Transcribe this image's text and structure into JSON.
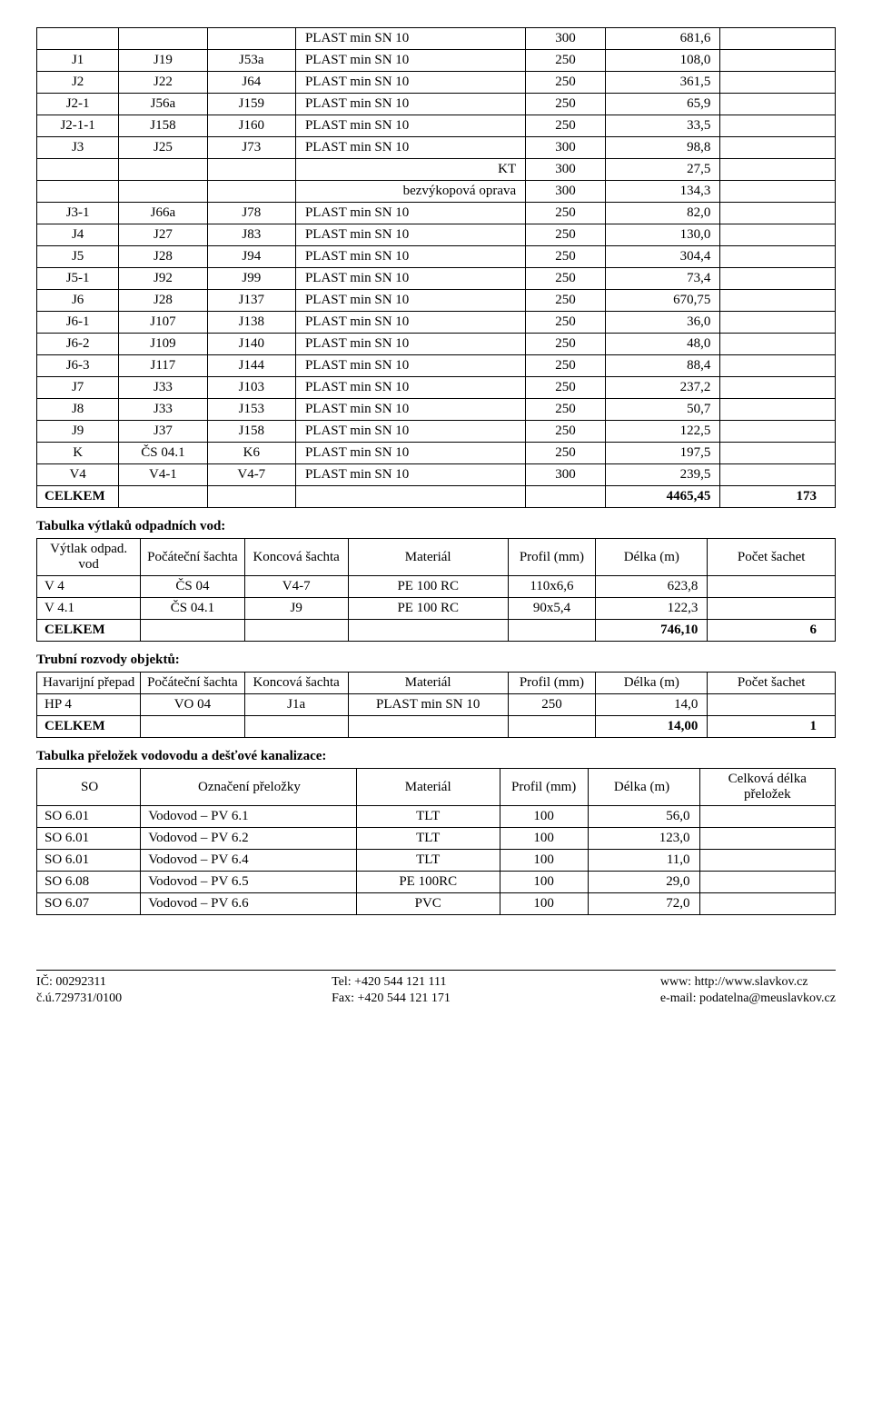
{
  "table1": {
    "rows": [
      {
        "a": "",
        "b": "",
        "c": "",
        "d": "PLAST min SN 10",
        "e": "300",
        "f": "681,6",
        "g": ""
      },
      {
        "a": "J1",
        "b": "J19",
        "c": "J53a",
        "d": "PLAST min SN 10",
        "e": "250",
        "f": "108,0",
        "g": ""
      },
      {
        "a": "J2",
        "b": "J22",
        "c": "J64",
        "d": "PLAST min SN 10",
        "e": "250",
        "f": "361,5",
        "g": ""
      },
      {
        "a": "J2-1",
        "b": "J56a",
        "c": "J159",
        "d": "PLAST min SN 10",
        "e": "250",
        "f": "65,9",
        "g": ""
      },
      {
        "a": "J2-1-1",
        "b": "J158",
        "c": "J160",
        "d": "PLAST min SN 10",
        "e": "250",
        "f": "33,5",
        "g": ""
      },
      {
        "a": "J3",
        "b": "J25",
        "c": "J73",
        "d": "PLAST min SN 10",
        "e": "300",
        "f": "98,8",
        "g": ""
      },
      {
        "a": "",
        "b": "",
        "c": "",
        "d": "KT",
        "dalign": "r",
        "e": "300",
        "f": "27,5",
        "g": ""
      },
      {
        "a": "",
        "b": "",
        "c": "",
        "d": "bezvýkopová oprava",
        "dalign": "r",
        "e": "300",
        "f": "134,3",
        "g": ""
      },
      {
        "a": "J3-1",
        "b": "J66a",
        "c": "J78",
        "d": "PLAST min SN 10",
        "e": "250",
        "f": "82,0",
        "g": ""
      },
      {
        "a": "J4",
        "b": "J27",
        "c": "J83",
        "d": "PLAST min SN 10",
        "e": "250",
        "f": "130,0",
        "g": ""
      },
      {
        "a": "J5",
        "b": "J28",
        "c": "J94",
        "d": "PLAST min SN 10",
        "e": "250",
        "f": "304,4",
        "g": ""
      },
      {
        "a": "J5-1",
        "b": "J92",
        "c": "J99",
        "d": "PLAST min SN 10",
        "e": "250",
        "f": "73,4",
        "g": ""
      },
      {
        "a": "J6",
        "b": "J28",
        "c": "J137",
        "d": "PLAST min SN 10",
        "e": "250",
        "f": "670,75",
        "g": ""
      },
      {
        "a": "J6-1",
        "b": "J107",
        "c": "J138",
        "d": "PLAST min SN 10",
        "e": "250",
        "f": "36,0",
        "g": ""
      },
      {
        "a": "J6-2",
        "b": "J109",
        "c": "J140",
        "d": "PLAST min SN 10",
        "e": "250",
        "f": "48,0",
        "g": ""
      },
      {
        "a": "J6-3",
        "b": "J117",
        "c": "J144",
        "d": "PLAST min SN 10",
        "e": "250",
        "f": "88,4",
        "g": ""
      },
      {
        "a": "J7",
        "b": "J33",
        "c": "J103",
        "d": "PLAST min SN 10",
        "e": "250",
        "f": "237,2",
        "g": ""
      },
      {
        "a": "J8",
        "b": "J33",
        "c": "J153",
        "d": "PLAST min SN 10",
        "e": "250",
        "f": "50,7",
        "g": ""
      },
      {
        "a": "J9",
        "b": "J37",
        "c": "J158",
        "d": "PLAST min SN 10",
        "e": "250",
        "f": "122,5",
        "g": ""
      },
      {
        "a": "K",
        "b": "ČS 04.1",
        "c": "K6",
        "d": "PLAST min SN 10",
        "e": "250",
        "f": "197,5",
        "g": ""
      },
      {
        "a": "V4",
        "b": "V4-1",
        "c": "V4-7",
        "d": "PLAST min SN 10",
        "e": "300",
        "f": "239,5",
        "g": ""
      }
    ],
    "total": {
      "label": "CELKEM",
      "f": "4465,45",
      "g": "173"
    }
  },
  "section2_title": "Tabulka výtlaků odpadních vod:",
  "table2": {
    "header": [
      "Výtlak odpad. vod",
      "Počáteční šachta",
      "Koncová šachta",
      "Materiál",
      "Profil (mm)",
      "Délka (m)",
      "Počet šachet"
    ],
    "rows": [
      {
        "a": "V 4",
        "b": "ČS 04",
        "c": "V4-7",
        "d": "PE 100 RC",
        "e": "110x6,6",
        "f": "623,8",
        "g": ""
      },
      {
        "a": "V 4.1",
        "b": "ČS 04.1",
        "c": "J9",
        "d": "PE 100 RC",
        "e": "90x5,4",
        "f": "122,3",
        "g": ""
      }
    ],
    "total": {
      "label": "CELKEM",
      "f": "746,10",
      "g": "6"
    }
  },
  "section3_title": "Trubní rozvody objektů:",
  "table3": {
    "header": [
      "Havarijní přepad",
      "Počáteční šachta",
      "Koncová šachta",
      "Materiál",
      "Profil (mm)",
      "Délka (m)",
      "Počet šachet"
    ],
    "rows": [
      {
        "a": "HP 4",
        "b": "VO 04",
        "c": "J1a",
        "d": "PLAST min SN 10",
        "e": "250",
        "f": "14,0",
        "g": ""
      }
    ],
    "total": {
      "label": "CELKEM",
      "f": "14,00",
      "g": "1"
    }
  },
  "section4_title": "Tabulka přeložek vodovodu a dešťové kanalizace:",
  "table4": {
    "header": [
      "SO",
      "Označení přeložky",
      "Materiál",
      "Profil (mm)",
      "Délka (m)",
      "Celková délka přeložek"
    ],
    "rows": [
      {
        "a": "SO 6.01",
        "b": "Vodovod – PV 6.1",
        "c": "TLT",
        "d": "100",
        "e": "56,0",
        "f": ""
      },
      {
        "a": "SO 6.01",
        "b": "Vodovod – PV 6.2",
        "c": "TLT",
        "d": "100",
        "e": "123,0",
        "f": ""
      },
      {
        "a": "SO 6.01",
        "b": "Vodovod – PV 6.4",
        "c": "TLT",
        "d": "100",
        "e": "11,0",
        "f": ""
      },
      {
        "a": "SO 6.08",
        "b": "Vodovod – PV 6.5",
        "c": "PE 100RC",
        "d": "100",
        "e": "29,0",
        "f": ""
      },
      {
        "a": "SO 6.07",
        "b": "Vodovod – PV 6.6",
        "c": "PVC",
        "d": "100",
        "e": "72,0",
        "f": ""
      }
    ]
  },
  "footer": {
    "l1": "IČ: 00292311",
    "l2": "č.ú.729731/0100",
    "m1": "Tel:  +420 544 121 111",
    "m2": "Fax: +420 544 121 171",
    "r1": "www: http://www.slavkov.cz",
    "r2": "e-mail: podatelna@meuslavkov.cz"
  }
}
